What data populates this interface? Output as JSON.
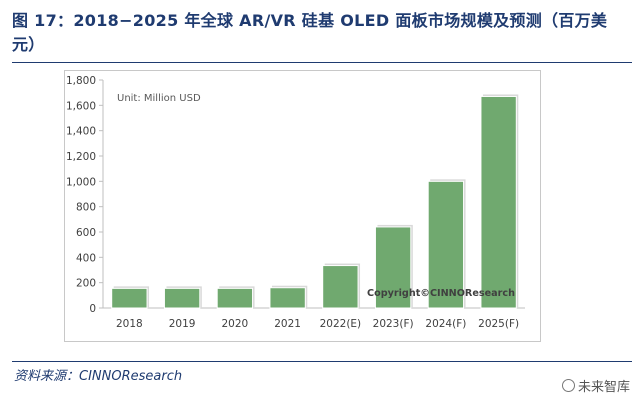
{
  "figure": {
    "title": "图 17：2018−2025 年全球 AR/VR 硅基 OLED 面板市场规模及预测（百万美元）",
    "source": "资料来源：CINNOResearch",
    "brand": "未来智库"
  },
  "colors": {
    "bar": "#70a96f",
    "title": "#1f3b70",
    "axis": "#bfbfbf",
    "text": "#404040"
  },
  "chart_data": {
    "type": "bar",
    "title": "",
    "unit_label": "Unit: Million USD",
    "watermark": "Copyright©CINNOResearch",
    "categories": [
      "2018",
      "2019",
      "2020",
      "2021",
      "2022(E)",
      "2023(F)",
      "2024(F)",
      "2025(F)"
    ],
    "values": [
      155,
      155,
      155,
      160,
      335,
      640,
      1000,
      1670
    ],
    "ylim": [
      0,
      1800
    ],
    "yticks": [
      0,
      200,
      400,
      600,
      800,
      1000,
      1200,
      1400,
      1600,
      1800
    ],
    "ytick_labels": [
      "0",
      "200",
      "400",
      "600",
      "800",
      "1,000",
      "1,200",
      "1,400",
      "1,600",
      "1,800"
    ],
    "xlabel": "",
    "ylabel": "",
    "grid": false,
    "legend": "none"
  }
}
